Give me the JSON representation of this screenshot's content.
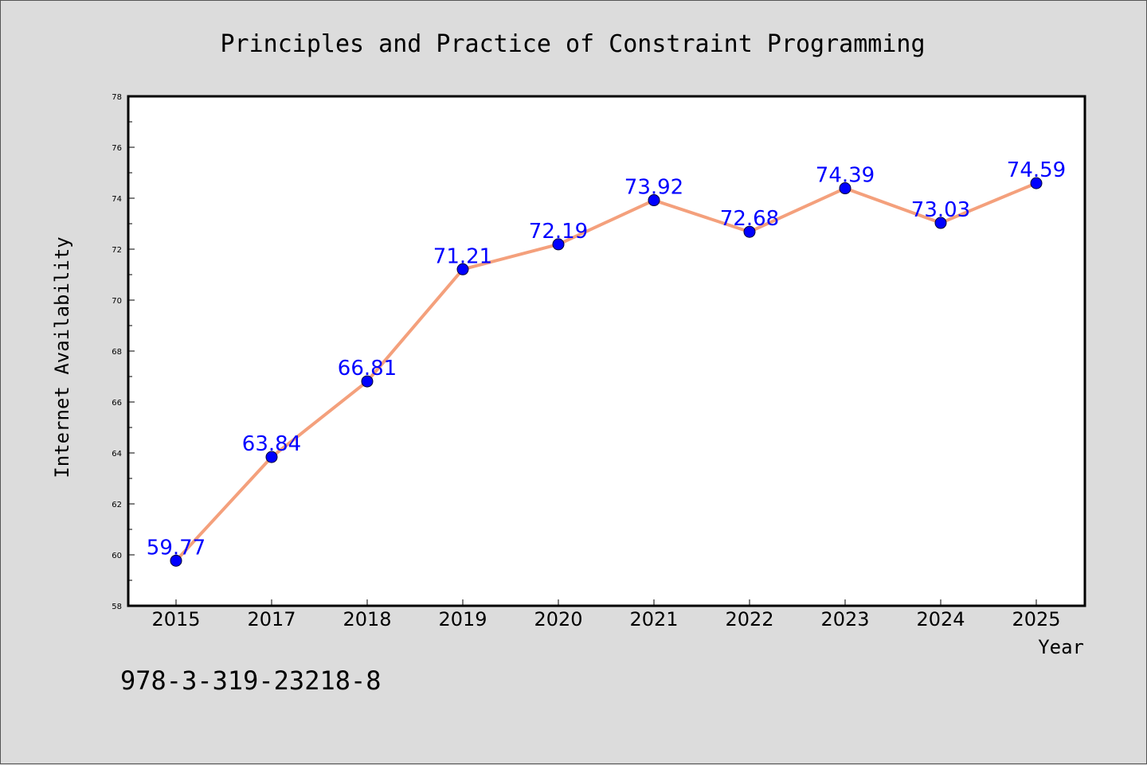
{
  "chart_data": {
    "type": "line",
    "title": "Principles and Practice of Constraint Programming",
    "xlabel": "Year",
    "ylabel": "Internet Availability",
    "categories": [
      "2015",
      "2017",
      "2018",
      "2019",
      "2020",
      "2021",
      "2022",
      "2023",
      "2024",
      "2025"
    ],
    "series": [
      {
        "values": [
          59.77,
          63.84,
          66.81,
          71.21,
          72.19,
          73.92,
          72.68,
          74.39,
          73.03,
          74.59
        ],
        "data_labels": [
          "59.77",
          "63.84",
          "66.81",
          "71.21",
          "72.19",
          "73.92",
          "72.68",
          "74.39",
          "73.03",
          "74.59"
        ]
      }
    ],
    "ylim": [
      58,
      78
    ],
    "yticks": [
      "58",
      "60",
      "62",
      "64",
      "66",
      "68",
      "70",
      "72",
      "74",
      "76",
      "78"
    ],
    "grid": false,
    "colors": {
      "line": "#f4a07c",
      "marker": "#0000ff",
      "label": "#0000ff",
      "background": "#dcdcdc",
      "plot": "#ffffff"
    }
  },
  "footnote": "978-3-319-23218-8"
}
